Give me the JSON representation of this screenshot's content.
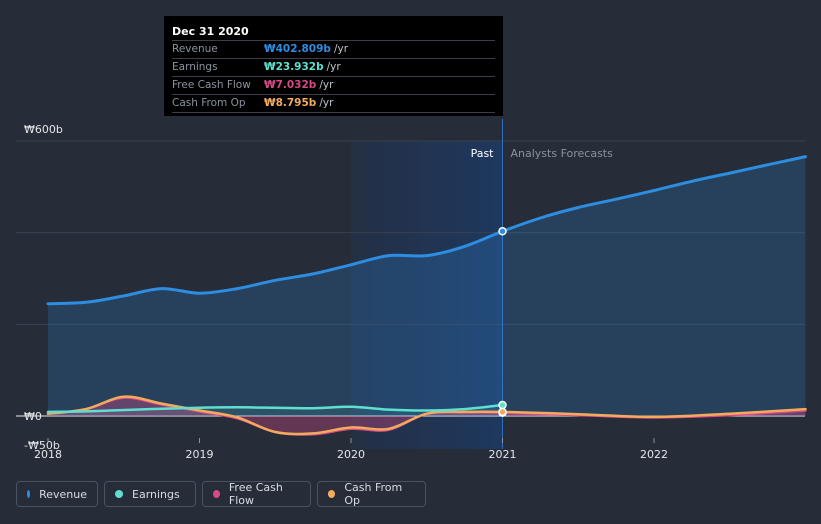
{
  "tooltip": {
    "date": "Dec 31 2020",
    "rows": [
      {
        "label": "Revenue",
        "value": "₩402.809b",
        "unit": "/yr",
        "color": "#2d8de0"
      },
      {
        "label": "Earnings",
        "value": "₩23.932b",
        "unit": "/yr",
        "color": "#5ee0d0"
      },
      {
        "label": "Free Cash Flow",
        "value": "₩7.032b",
        "unit": "/yr",
        "color": "#d64a86"
      },
      {
        "label": "Cash From Op",
        "value": "₩8.795b",
        "unit": "/yr",
        "color": "#f2ab5c"
      }
    ]
  },
  "legend": [
    {
      "label": "Revenue",
      "color": "#2d8de0"
    },
    {
      "label": "Earnings",
      "color": "#5ee0d0"
    },
    {
      "label": "Free Cash Flow",
      "color": "#d64a86"
    },
    {
      "label": "Cash From Op",
      "color": "#f2ab5c"
    }
  ],
  "chart_data": {
    "type": "area",
    "title": "",
    "xlabel": "",
    "ylabel": "",
    "x_ticks": [
      "2018",
      "2019",
      "2020",
      "2021",
      "2022"
    ],
    "y_tick_labels": [
      "₩600b",
      "₩0",
      "-₩50b"
    ],
    "ylim": [
      -50,
      600
    ],
    "xlim": [
      2017.8,
      2023.0
    ],
    "past_label": "Past",
    "forecast_label": "Analysts Forecasts",
    "divider_x": 2021.0,
    "highlight_start_x": 2020.0,
    "series": [
      {
        "name": "Revenue",
        "color": "#2d8de0",
        "x": [
          2018.0,
          2018.25,
          2018.5,
          2018.75,
          2019.0,
          2019.25,
          2019.5,
          2019.75,
          2020.0,
          2020.25,
          2020.5,
          2020.75,
          2021.0,
          2021.25,
          2021.5,
          2021.75,
          2022.0,
          2022.25,
          2022.5,
          2022.75,
          2023.0
        ],
        "values": [
          245,
          248,
          262,
          278,
          268,
          278,
          296,
          310,
          330,
          350,
          350,
          370,
          403,
          432,
          455,
          473,
          492,
          512,
          530,
          548,
          566
        ]
      },
      {
        "name": "Earnings",
        "color": "#5ee0d0",
        "x": [
          2018.0,
          2018.25,
          2018.5,
          2018.75,
          2019.0,
          2019.25,
          2019.5,
          2019.75,
          2020.0,
          2020.25,
          2020.5,
          2020.75,
          2021.0
        ],
        "values": [
          9,
          10,
          13,
          16,
          18,
          19,
          18,
          17,
          20,
          14,
          12,
          15,
          24
        ]
      },
      {
        "name": "Free Cash Flow",
        "color": "#d64a86",
        "x": [
          2018.0,
          2018.25,
          2018.5,
          2018.75,
          2019.0,
          2019.25,
          2019.5,
          2019.75,
          2020.0,
          2020.25,
          2020.5,
          2020.75,
          2021.0,
          2021.5,
          2022.0,
          2022.5,
          2023.0
        ],
        "values": [
          5,
          15,
          40,
          25,
          10,
          -5,
          -35,
          -40,
          -28,
          -30,
          5,
          8,
          7,
          2,
          -3,
          2,
          12
        ]
      },
      {
        "name": "Cash From Op",
        "color": "#f2ab5c",
        "x": [
          2018.0,
          2018.25,
          2018.5,
          2018.75,
          2019.0,
          2019.25,
          2019.5,
          2019.75,
          2020.0,
          2020.25,
          2020.5,
          2020.75,
          2021.0,
          2021.5,
          2022.0,
          2022.5,
          2023.0
        ],
        "values": [
          5,
          15,
          42,
          27,
          12,
          -3,
          -35,
          -38,
          -25,
          -28,
          5,
          9,
          9,
          4,
          -2,
          5,
          15
        ]
      }
    ]
  }
}
